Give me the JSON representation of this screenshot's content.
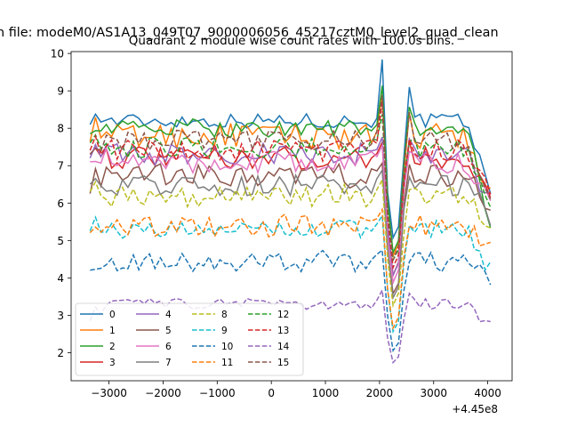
{
  "chart_data": {
    "type": "line",
    "suptitle": "n file: modeM0/AS1A13_049T07_9000006056_45217cztM0_level2_quad_clean",
    "title": "Quadrant 2 module wise count rates with 100.0s bins.",
    "xlabel": "",
    "ylabel": "",
    "x_offset_label": "+4.45e8",
    "xlim": [
      -3700,
      4450
    ],
    "ylim": [
      1.25,
      10.05
    ],
    "x_ticks": [
      -3000,
      -2000,
      -1000,
      0,
      1000,
      2000,
      3000,
      4000
    ],
    "x_tick_labels": [
      "−3000",
      "−2000",
      "−1000",
      "0",
      "1000",
      "2000",
      "3000",
      "4000"
    ],
    "y_ticks": [
      2,
      3,
      4,
      5,
      6,
      7,
      8,
      9,
      10
    ],
    "y_tick_labels": [
      "2",
      "3",
      "4",
      "5",
      "6",
      "7",
      "8",
      "9",
      "10"
    ],
    "x_start": -3350,
    "x_step": 100,
    "n_points": 75,
    "grid": false,
    "legend": {
      "position": "lower-left",
      "columns": 4
    },
    "dip_center": 2280,
    "bump_center": 2050,
    "series": [
      {
        "name": "0",
        "color": "#1f77b4",
        "style": "solid",
        "base": 8.2,
        "start": 8.3,
        "end": 6.3,
        "noise": 0.2,
        "dip": 5.0,
        "bump": 1.5
      },
      {
        "name": "1",
        "color": "#ff7f0e",
        "style": "solid",
        "base": 7.8,
        "start": 8.0,
        "end": 6.2,
        "noise": 0.35,
        "dip": 4.5,
        "bump": 0.8
      },
      {
        "name": "2",
        "color": "#2ca02c",
        "style": "solid",
        "base": 8.0,
        "start": 8.1,
        "end": 5.5,
        "noise": 0.25,
        "dip": 4.6,
        "bump": 0.9
      },
      {
        "name": "3",
        "color": "#d62728",
        "style": "solid",
        "base": 7.2,
        "start": 7.6,
        "end": 6.1,
        "noise": 0.3,
        "dip": 4.0,
        "bump": 0.7
      },
      {
        "name": "4",
        "color": "#9467bd",
        "style": "solid",
        "base": 7.3,
        "start": 7.5,
        "end": 6.0,
        "noise": 0.3,
        "dip": 4.0,
        "bump": 0.7
      },
      {
        "name": "5",
        "color": "#8c564b",
        "style": "solid",
        "base": 6.7,
        "start": 6.6,
        "end": 5.9,
        "noise": 0.35,
        "dip": 3.5,
        "bump": 0.6
      },
      {
        "name": "6",
        "color": "#e377c2",
        "style": "solid",
        "base": 7.1,
        "start": 7.4,
        "end": 5.9,
        "noise": 0.3,
        "dip": 3.8,
        "bump": 0.6
      },
      {
        "name": "7",
        "color": "#7f7f7f",
        "style": "solid",
        "base": 6.5,
        "start": 6.8,
        "end": 5.6,
        "noise": 0.3,
        "dip": 3.4,
        "bump": 0.5
      },
      {
        "name": "8",
        "color": "#bcbd22",
        "style": "dashed",
        "base": 6.2,
        "start": 6.6,
        "end": 5.3,
        "noise": 0.3,
        "dip": 3.2,
        "bump": 0.5
      },
      {
        "name": "9",
        "color": "#17becf",
        "style": "dashed",
        "base": 5.3,
        "start": 5.5,
        "end": 4.2,
        "noise": 0.25,
        "dip": 2.5,
        "bump": 0.4
      },
      {
        "name": "10",
        "color": "#1f77b4",
        "style": "dashed",
        "base": 4.45,
        "start": 4.5,
        "end": 3.9,
        "noise": 0.3,
        "dip": 2.0,
        "bump": 0.3
      },
      {
        "name": "11",
        "color": "#ff7f0e",
        "style": "dashed",
        "base": 5.4,
        "start": 5.5,
        "end": 4.8,
        "noise": 0.3,
        "dip": 2.6,
        "bump": 0.4
      },
      {
        "name": "12",
        "color": "#2ca02c",
        "style": "dashed",
        "base": 7.5,
        "start": 7.9,
        "end": 6.1,
        "noise": 0.3,
        "dip": 4.4,
        "bump": 0.8
      },
      {
        "name": "13",
        "color": "#d62728",
        "style": "dashed",
        "base": 7.4,
        "start": 7.7,
        "end": 6.2,
        "noise": 0.3,
        "dip": 4.2,
        "bump": 1.2
      },
      {
        "name": "14",
        "color": "#9467bd",
        "style": "dashed",
        "base": 3.3,
        "start": 3.0,
        "end": 2.7,
        "noise": 0.15,
        "dip": 1.7,
        "bump": 0.3
      },
      {
        "name": "15",
        "color": "#8c564b",
        "style": "dashed",
        "base": 7.7,
        "start": 7.6,
        "end": 6.2,
        "noise": 0.3,
        "dip": 4.4,
        "bump": 1.0
      }
    ]
  }
}
